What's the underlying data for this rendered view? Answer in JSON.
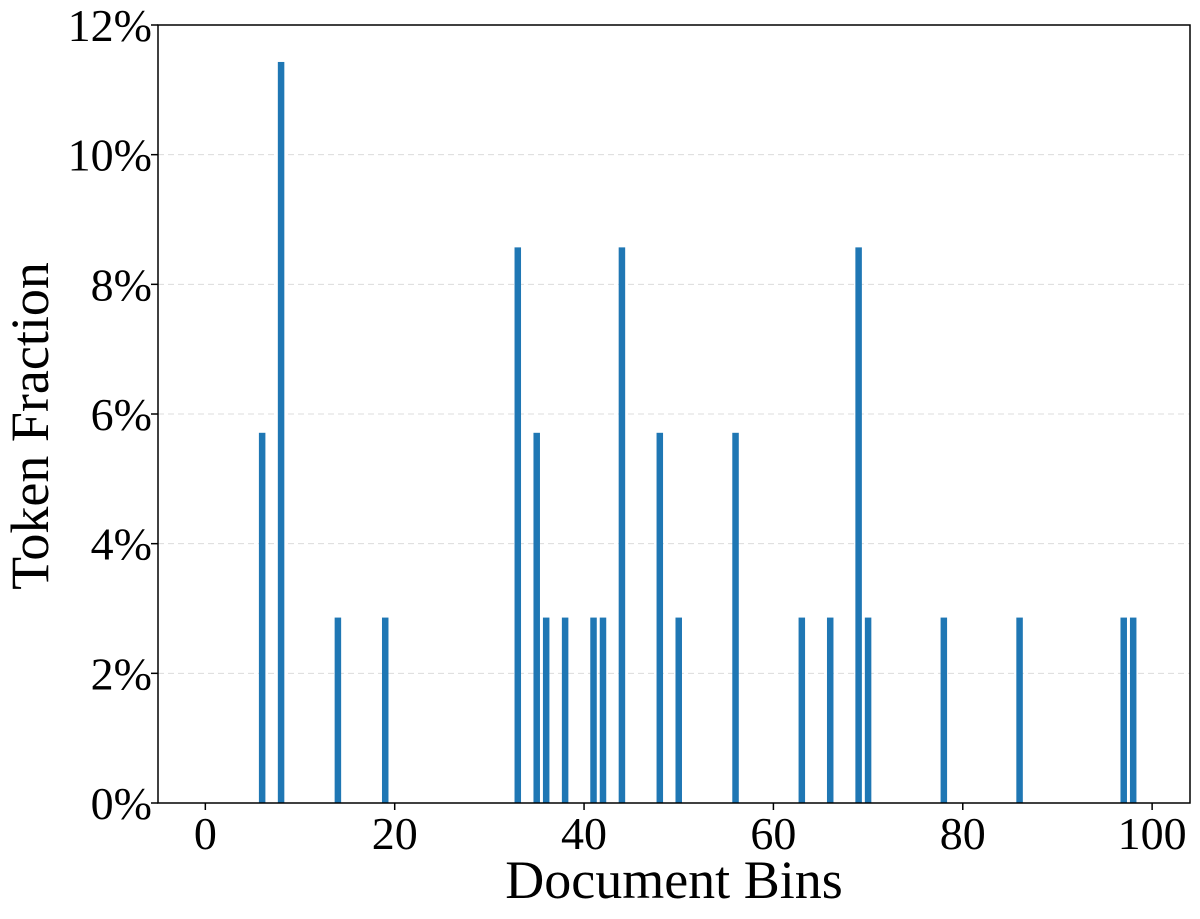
{
  "chart_data": {
    "type": "bar",
    "xlabel": "Document Bins",
    "ylabel": "Token Fraction",
    "xlim": [
      -5,
      104
    ],
    "ylim": [
      0,
      12
    ],
    "x_ticks": [
      0,
      20,
      40,
      60,
      80,
      100
    ],
    "y_ticks": [
      0,
      2,
      4,
      6,
      8,
      10,
      12
    ],
    "y_tick_format": "percent",
    "grid": "y-dashed",
    "bar_color": "#1f77b4",
    "series": [
      {
        "x": [
          6,
          8,
          14,
          19,
          33,
          35,
          36,
          38,
          41,
          42,
          44,
          48,
          50,
          56,
          63,
          66,
          69,
          70,
          78,
          86,
          97,
          98
        ],
        "values": [
          5.71,
          11.43,
          2.86,
          2.86,
          8.57,
          5.71,
          2.86,
          2.86,
          2.86,
          2.86,
          8.57,
          5.71,
          2.86,
          5.71,
          2.86,
          2.86,
          8.57,
          2.86,
          2.86,
          2.86,
          2.86,
          2.86
        ]
      }
    ]
  }
}
